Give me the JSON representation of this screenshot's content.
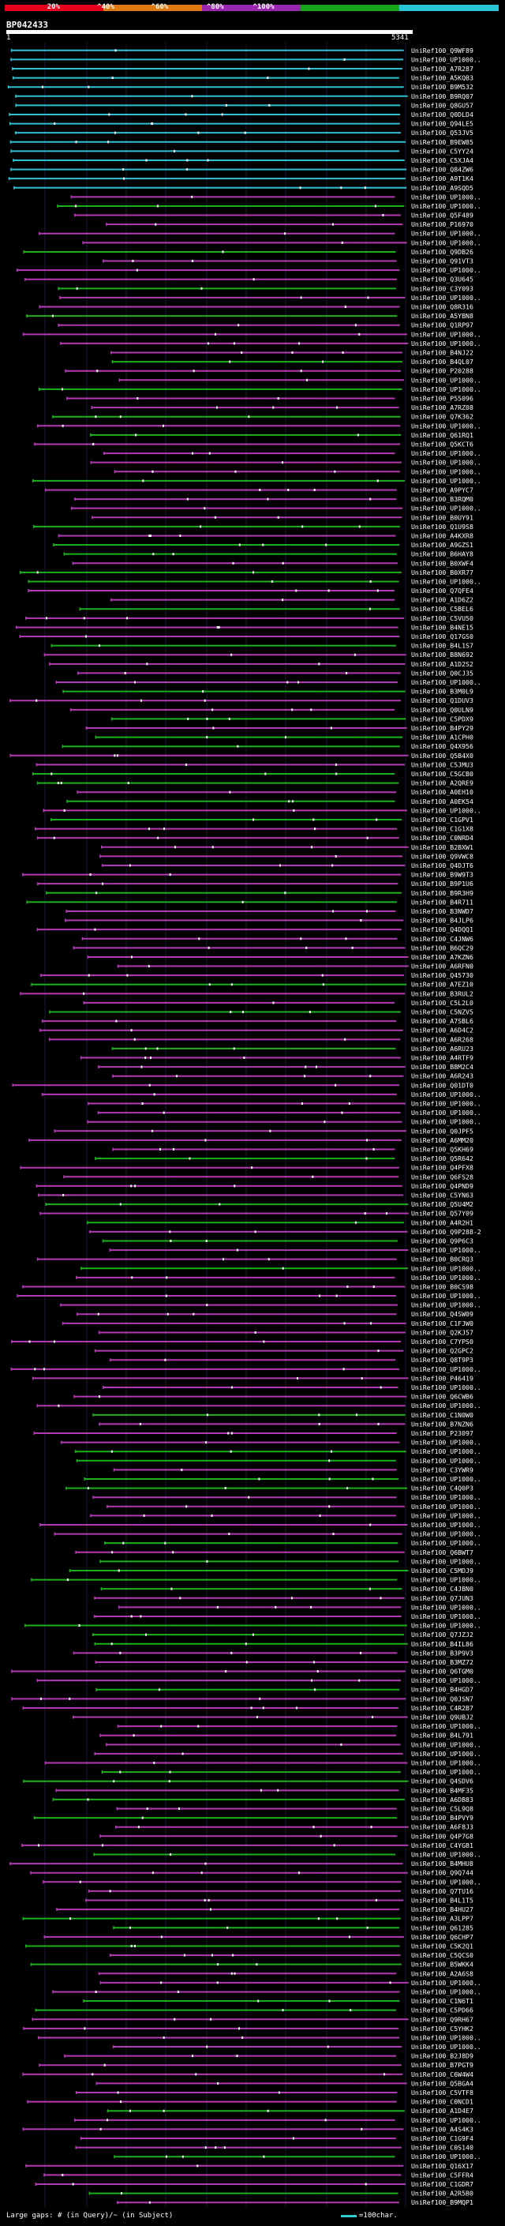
{
  "legend": {
    "ticks": [
      "20%",
      "^40%",
      "^60%",
      "^80%",
      "^100%"
    ],
    "colors": [
      "#e8001c",
      "#e07a10",
      "#9b27b0",
      "#19a619",
      "#29c4d6"
    ]
  },
  "title": "BP042433",
  "ruler": {
    "start": "1",
    "end": "5341"
  },
  "hits": {
    "labels": [
      "UniRef100_Q9WF89",
      "UniRef100_UP1000..",
      "UniRef100_A7R287",
      "UniRef100_A5KQB3",
      "UniRef100_B9M532",
      "UniRef100_B9RQ07",
      "UniRef100_Q8GU57",
      "UniRef100_Q0DLD4",
      "UniRef100_Q94LE5",
      "UniRef100_Q53JV5",
      "UniRef100_B9EW85",
      "UniRef100_C5YY24",
      "UniRef100_C5XJA4",
      "UniRef100_Q84ZW6",
      "UniRef100_A9T1K4",
      "UniRef100_A9SQD5",
      "UniRef100_UP1000..",
      "UniRef100_UP1000..",
      "UniRef100_Q5F489",
      "UniRef100_P16970",
      "UniRef100_UP1000..",
      "UniRef100_UP1000..",
      "UniRef100_Q9DB26",
      "UniRef100_Q91VT3",
      "UniRef100_UP1000..",
      "UniRef100_Q3U645",
      "UniRef100_C3Y093",
      "UniRef100_UP1000..",
      "UniRef100_Q8R316",
      "UniRef100_A5YBN8",
      "UniRef100_Q1RP97",
      "UniRef100_UP1000..",
      "UniRef100_UP1000..",
      "UniRef100_B4NJ22",
      "UniRef100_B4QL07",
      "UniRef100_P20288",
      "UniRef100_UP1000..",
      "UniRef100_UP1000..",
      "UniRef100_P55096",
      "UniRef100_A7RZ08",
      "UniRef100_Q7K362",
      "UniRef100_UP1000..",
      "UniRef100_Q61RQ1",
      "UniRef100_Q5KCT6",
      "UniRef100_UP1000..",
      "UniRef100_UP1000..",
      "UniRef100_UP1000..",
      "UniRef100_UP1000..",
      "UniRef100_A9PYC7",
      "UniRef100_B3RQM0",
      "UniRef100_UP1000..",
      "UniRef100_B0UY91",
      "UniRef100_Q1U9S8",
      "UniRef100_A4KXR8",
      "UniRef100_A9GZS1",
      "UniRef100_B6HAY8",
      "UniRef100_B0XWF4",
      "UniRef100_B0XR77",
      "UniRef100_UP1000..",
      "UniRef100_Q7QFE4",
      "UniRef100_A1D6Z2",
      "UniRef100_C5BEL6",
      "UniRef100_C5VU50",
      "UniRef100_B4NE15",
      "UniRef100_Q17GS0",
      "UniRef100_B4L1S7",
      "UniRef100_B8N692",
      "UniRef100_A1D2S2",
      "UniRef100_Q0CJ35",
      "UniRef100_UP1000..",
      "UniRef100_B3M0L9",
      "UniRef100_Q1DUV3",
      "UniRef100_Q0ULN9",
      "UniRef100_C5PDX9",
      "UniRef100_B4PY29",
      "UniRef100_A1CPH0",
      "UniRef100_Q4X956",
      "UniRef100_Q5B4X0",
      "UniRef100_C5JMU3",
      "UniRef100_C5GCB0",
      "UniRef100_A2QRE9",
      "UniRef100_A0EH10",
      "UniRef100_A0EK54",
      "UniRef100_UP1000..",
      "UniRef100_C1GPV1",
      "UniRef100_C1G1X8",
      "UniRef100_C0NRD4",
      "UniRef100_B2BXW1",
      "UniRef100_Q9VWC8",
      "UniRef100_Q4DJT6",
      "UniRef100_B9W9T3",
      "UniRef100_B9P1U6",
      "UniRef100_B9R3H9",
      "UniRef100_B4R711",
      "UniRef100_B3NWD7",
      "UniRef100_B4JLP6",
      "UniRef100_Q4DQQ1",
      "UniRef100_C4JNW6",
      "UniRef100_B6QC29",
      "UniRef100_A7KZN6",
      "UniRef100_A6RFN0",
      "UniRef100_Q45730",
      "UniRef100_A7EZ10",
      "UniRef100_B3RUL2",
      "UniRef100_C5L2L0",
      "UniRef100_C5NZV5",
      "UniRef100_A7SBL6",
      "UniRef100_A6D4C2",
      "UniRef100_A6R268",
      "UniRef100_A6RU23",
      "UniRef100_A4RTF9",
      "UniRef100_B8M2C4",
      "UniRef100_A6R243",
      "UniRef100_Q01DT0",
      "UniRef100_UP1000..",
      "UniRef100_UP1000..",
      "UniRef100_UP1000..",
      "UniRef100_UP1000..",
      "UniRef100_Q0JPF5",
      "UniRef100_A6MM20",
      "UniRef100_Q5KH69",
      "UniRef100_Q5R642",
      "UniRef100_Q4PFX8",
      "UniRef100_Q6FS28",
      "UniRef100_Q4PND9",
      "UniRef100_C5YN63",
      "UniRef100_Q5U4M2",
      "UniRef100_Q57Y09",
      "UniRef100_A4R2H1",
      "UniRef100_Q9P288-2",
      "UniRef100_Q9P6C3",
      "UniRef100_UP1000..",
      "UniRef100_B0CRQ3",
      "UniRef100_UP1000..",
      "UniRef100_UP1000..",
      "UniRef100_B0CS98",
      "UniRef100_UP1000..",
      "UniRef100_UP1000..",
      "UniRef100_Q4SW09",
      "UniRef100_C1FJW0",
      "UniRef100_Q2KJ57",
      "UniRef100_C7YPS0",
      "UniRef100_Q2GPC2",
      "UniRef100_Q8T9P3",
      "UniRef100_UP1000..",
      "UniRef100_P46419",
      "UniRef100_UP1000..",
      "UniRef100_Q6CWB6",
      "UniRef100_UP1000..",
      "UniRef100_C1N0W0",
      "UniRef100_B7NZN6",
      "UniRef100_P23097",
      "UniRef100_UP1000..",
      "UniRef100_UP1000..",
      "UniRef100_UP1000..",
      "UniRef100_C3YWR9",
      "UniRef100_UP1000..",
      "UniRef100_C4Q0P3",
      "UniRef100_UP1000..",
      "UniRef100_UP1000..",
      "UniRef100_UP1000..",
      "UniRef100_UP1000..",
      "UniRef100_UP1000..",
      "UniRef100_UP1000..",
      "UniRef100_Q6BWT7",
      "UniRef100_UP1000..",
      "UniRef100_C5MDJ9",
      "UniRef100_UP1000..",
      "UniRef100_C4JBN0",
      "UniRef100_Q7JUN3",
      "UniRef100_UP1000..",
      "UniRef100_UP1000..",
      "UniRef100_UP1000..",
      "UniRef100_Q7JZJ2",
      "UniRef100_B4IL86",
      "UniRef100_B3P9V3",
      "UniRef100_B3MZ72",
      "UniRef100_Q6TGM0",
      "UniRef100_UP1000..",
      "UniRef100_B4HGD7",
      "UniRef100_Q0JSN7",
      "UniRef100_C4R2B7",
      "UniRef100_Q9UBJ2",
      "UniRef100_UP1000..",
      "UniRef100_B4L791",
      "UniRef100_UP1000..",
      "UniRef100_UP1000..",
      "UniRef100_UP1000..",
      "UniRef100_UP1000..",
      "UniRef100_Q4SDV6",
      "UniRef100_B4MF35",
      "UniRef100_A6DB83",
      "UniRef100_C5L9Q8",
      "UniRef100_B4PVY9",
      "UniRef100_A6F8J3",
      "UniRef100_Q4P7G8",
      "UniRef100_C4YGB1",
      "UniRef100_UP1000..",
      "UniRef100_B4MHU8",
      "UniRef100_Q9Q744",
      "UniRef100_UP1000..",
      "UniRef100_Q7TU16",
      "UniRef100_B4L1T5",
      "UniRef100_B4HU27",
      "UniRef100_A3LPP7",
      "UniRef100_Q61285",
      "UniRef100_Q6CHP7",
      "UniRef100_C5K2Q1",
      "UniRef100_C5QCS0",
      "UniRef100_B5WKK4",
      "UniRef100_A2A6S8",
      "UniRef100_UP1000..",
      "UniRef100_UP1000..",
      "UniRef100_C1N6T1",
      "UniRef100_C5PD66",
      "UniRef100_Q9RH67",
      "UniRef100_C5YHK2",
      "UniRef100_UP1000..",
      "UniRef100_UP1000..",
      "UniRef100_B2J8D9",
      "UniRef100_B7PGT9",
      "UniRef100_C6W4W4",
      "UniRef100_Q5BGA4",
      "UniRef100_C5VTF8",
      "UniRef100_C0NCD1",
      "UniRef100_A1D4E7",
      "UniRef100_UP1000..",
      "UniRef100_A4S4K3",
      "UniRef100_C1G9F4",
      "UniRef100_C0S140",
      "UniRef100_UP1000..",
      "UniRef100_Q16X17",
      "UniRef100_C5FFR4",
      "UniRef100_C1GDR7",
      "UniRef100_A2R5B0",
      "UniRef100_B9MQP1"
    ]
  },
  "footer": {
    "left": "Large gaps: # (in Query)/~ (in Subject)",
    "right": "=100char."
  }
}
